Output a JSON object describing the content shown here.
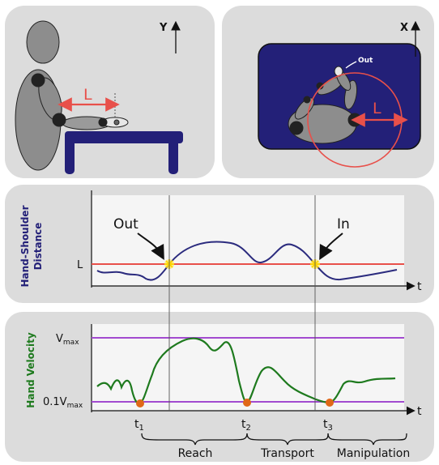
{
  "top_left": {
    "axis_label": "Y",
    "length_label": "L"
  },
  "top_right": {
    "axis_label": "X",
    "length_label": "L",
    "out_label": "Out"
  },
  "distance_panel": {
    "ylabel_line1": "Hand-Shoulder",
    "ylabel_line2": "Distance",
    "l_label": "L",
    "t_label": "t",
    "out_annotation": "Out",
    "in_annotation": "In"
  },
  "velocity_panel": {
    "ylabel": "Hand Velocity",
    "vmax_base": "V",
    "vmax_sub": "max",
    "tenth_base": "0.1V",
    "tenth_sub": "max",
    "t_label": "t",
    "t1": "t",
    "t1_sub": "1",
    "t2": "t",
    "t2_sub": "2",
    "t3": "t",
    "t3_sub": "3"
  },
  "phases": {
    "reach": "Reach",
    "transport": "Transport",
    "manipulation": "Manipulation"
  },
  "colors": {
    "panel_bg": "#dcdcdc",
    "navy": "#232078",
    "distance_curve": "#2b2b7e",
    "velocity_curve": "#1e7a1e",
    "threshold_red": "#e8504a",
    "vmax_purple": "#a24bd0",
    "event_marker": "#e06818",
    "cross_marker": "#ffe43a"
  }
}
